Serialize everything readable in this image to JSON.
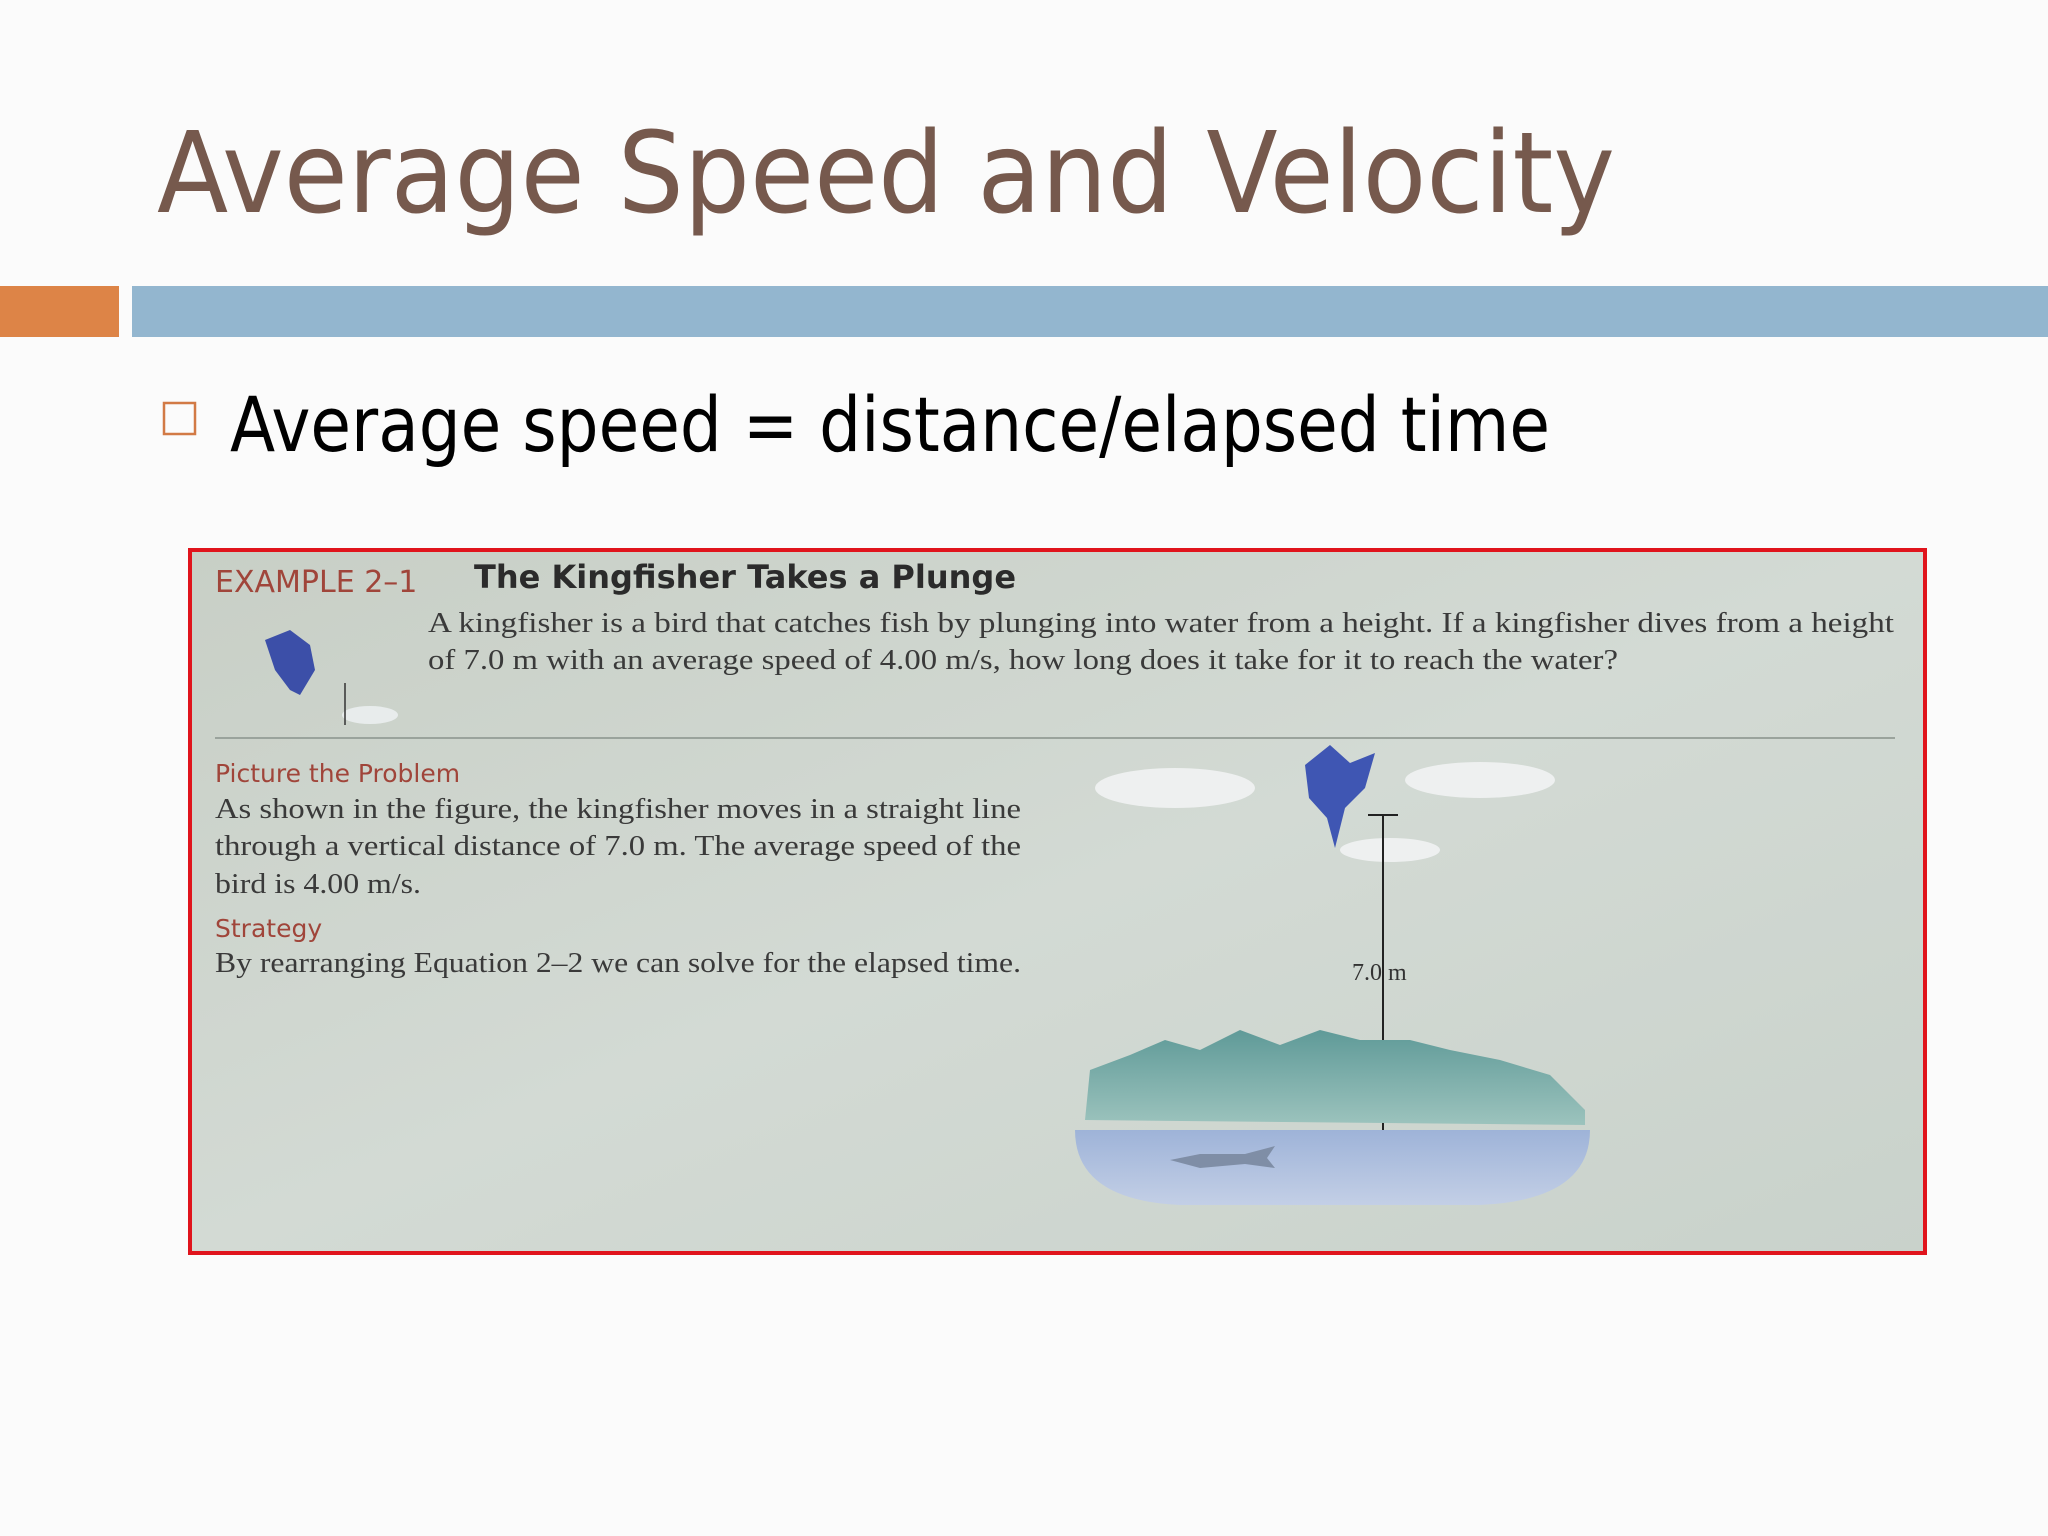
{
  "slide": {
    "title": "Average Speed and Velocity",
    "bullets": [
      "Average speed = distance/elapsed time"
    ],
    "example": {
      "label": "EXAMPLE 2–1",
      "heading": "The Kingfisher Takes a Plunge",
      "problem_lines": [
        "A kingfisher is a bird that catches fish by plunging into water from a height. If a kingfisher dives from a height",
        "of 7.0 m with an average speed of 4.00 m/s, how long does it take for it to reach the water?"
      ],
      "picture_heading": "Picture the Problem",
      "picture_lines": [
        "As shown in the figure, the kingfisher moves in a straight line",
        "through a vertical distance of 7.0 m. The average speed of the",
        "bird is 4.00 m/s."
      ],
      "strategy_heading": "Strategy",
      "strategy_lines": [
        "By rearranging Equation 2–2 we can solve for the elapsed time."
      ],
      "figure_label": "7.0 m"
    }
  }
}
